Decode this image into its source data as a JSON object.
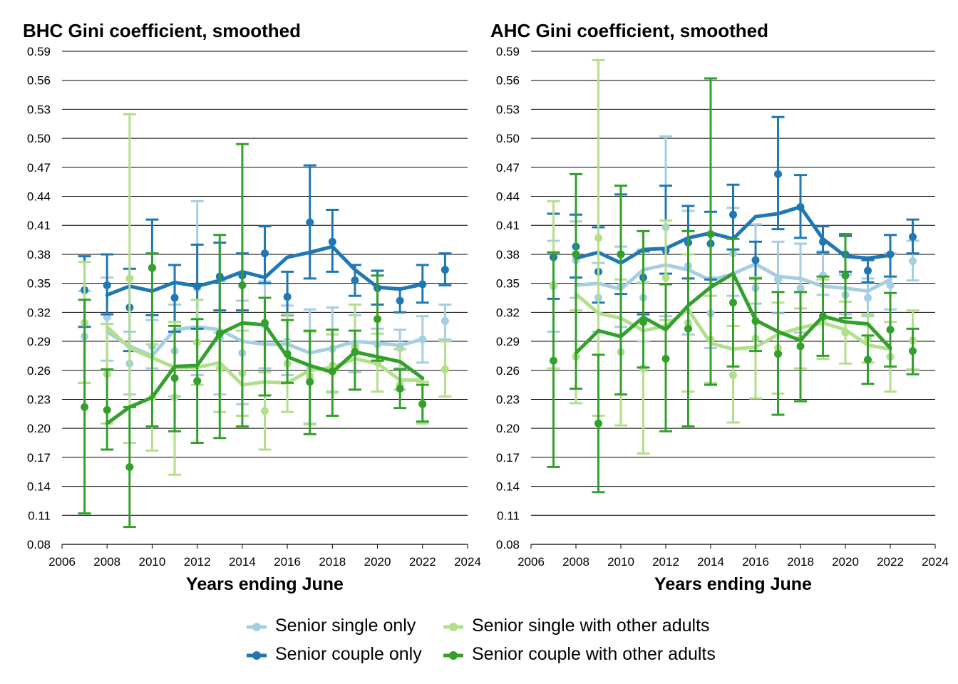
{
  "chart_data": [
    {
      "type": "line",
      "title": "BHC Gini coefficient, smoothed",
      "xlabel": "Years ending June",
      "ylabel": "",
      "xlim": [
        2006,
        2024
      ],
      "ylim": [
        0.08,
        0.59
      ],
      "xticks": [
        "2006",
        "2008",
        "2010",
        "2012",
        "2014",
        "2016",
        "2018",
        "2020",
        "2022",
        "2024"
      ],
      "yticks": [
        "0.59",
        "0.56",
        "0.53",
        "0.50",
        "0.47",
        "0.44",
        "0.41",
        "0.38",
        "0.35",
        "0.32",
        "0.29",
        "0.26",
        "0.23",
        "0.20",
        "0.17",
        "0.14",
        "0.11",
        "0.08"
      ],
      "grid": "horizontal",
      "series": [
        {
          "name": "Senior single only",
          "color": "#a6cee3",
          "x": [
            2007,
            2008,
            2009,
            2010,
            2011,
            2012,
            2013,
            2014,
            2015,
            2016,
            2017,
            2018,
            2019,
            2020,
            2021,
            2022,
            2023
          ],
          "points": [
            0.295,
            0.315,
            0.267,
            0.285,
            0.28,
            0.345,
            0.293,
            0.278,
            0.307,
            0.29,
            0.263,
            0.282,
            0.286,
            0.287,
            0.283,
            0.292,
            0.311
          ],
          "lower": [
            0.247,
            0.27,
            0.235,
            0.262,
            0.233,
            0.255,
            0.235,
            0.225,
            0.262,
            0.255,
            0.205,
            0.238,
            0.258,
            0.27,
            0.262,
            0.268,
            0.292
          ],
          "upper": [
            0.342,
            0.356,
            0.3,
            0.312,
            0.328,
            0.435,
            0.352,
            0.332,
            0.352,
            0.327,
            0.323,
            0.325,
            0.317,
            0.303,
            0.302,
            0.316,
            0.328
          ],
          "smoothed": [
            null,
            0.3,
            0.285,
            0.275,
            0.302,
            0.305,
            0.302,
            0.29,
            0.287,
            0.287,
            0.278,
            0.283,
            0.29,
            0.288,
            0.286,
            0.292,
            null
          ]
        },
        {
          "name": "Senior couple only",
          "color": "#1f78b4",
          "x": [
            2007,
            2008,
            2009,
            2010,
            2011,
            2012,
            2013,
            2014,
            2015,
            2016,
            2017,
            2018,
            2019,
            2020,
            2021,
            2022,
            2023
          ],
          "points": [
            0.343,
            0.348,
            0.325,
            0.366,
            0.335,
            0.347,
            0.357,
            0.358,
            0.381,
            0.336,
            0.413,
            0.393,
            0.353,
            0.345,
            0.332,
            0.349,
            0.364
          ],
          "lower": [
            0.305,
            0.318,
            0.28,
            0.317,
            0.3,
            0.303,
            0.322,
            0.322,
            0.35,
            0.317,
            0.355,
            0.362,
            0.337,
            0.328,
            0.32,
            0.33,
            0.348
          ],
          "upper": [
            0.378,
            0.38,
            0.365,
            0.416,
            0.369,
            0.39,
            0.392,
            0.381,
            0.409,
            0.362,
            0.472,
            0.426,
            0.369,
            0.363,
            0.345,
            0.369,
            0.381
          ],
          "smoothed": [
            null,
            0.338,
            0.347,
            0.342,
            0.351,
            0.347,
            0.353,
            0.362,
            0.356,
            0.377,
            0.382,
            0.388,
            0.364,
            0.346,
            0.344,
            0.349,
            null
          ]
        },
        {
          "name": "Senior single with other adults",
          "color": "#b2df8a",
          "x": [
            2007,
            2008,
            2009,
            2010,
            2011,
            2012,
            2013,
            2014,
            2015,
            2016,
            2017,
            2018,
            2019,
            2020,
            2021,
            2022,
            2023
          ],
          "points": [
            0.309,
            0.256,
            0.355,
            0.232,
            0.232,
            0.289,
            0.262,
            0.257,
            0.218,
            0.267,
            0.254,
            0.265,
            0.284,
            0.268,
            0.245,
            0.226,
            0.261
          ],
          "lower": [
            0.247,
            0.205,
            0.185,
            0.177,
            0.152,
            0.245,
            0.217,
            0.213,
            0.178,
            0.217,
            0.204,
            0.237,
            0.24,
            0.238,
            0.24,
            0.205,
            0.233
          ],
          "upper": [
            0.372,
            0.308,
            0.525,
            0.287,
            0.31,
            0.333,
            0.299,
            0.301,
            0.258,
            0.318,
            0.3,
            0.297,
            0.328,
            0.298,
            0.282,
            0.248,
            0.29
          ],
          "smoothed": [
            null,
            0.305,
            0.283,
            0.273,
            0.263,
            0.263,
            0.268,
            0.245,
            0.248,
            0.247,
            0.26,
            0.263,
            0.272,
            0.267,
            0.25,
            0.25,
            null
          ]
        },
        {
          "name": "Senior couple with other adults",
          "color": "#33a02c",
          "x": [
            2007,
            2008,
            2009,
            2010,
            2011,
            2012,
            2013,
            2014,
            2015,
            2016,
            2017,
            2018,
            2019,
            2020,
            2021,
            2022,
            2023
          ],
          "points": [
            0.222,
            0.219,
            0.16,
            0.366,
            0.252,
            0.249,
            0.298,
            0.348,
            0.309,
            0.277,
            0.248,
            0.259,
            0.279,
            0.313,
            0.241,
            0.225,
            null
          ],
          "lower": [
            0.112,
            0.178,
            0.098,
            0.202,
            0.197,
            0.185,
            0.19,
            0.202,
            0.234,
            0.247,
            0.194,
            0.213,
            0.24,
            0.27,
            0.221,
            0.207,
            null
          ],
          "upper": [
            0.333,
            0.261,
            0.222,
            0.381,
            0.306,
            0.313,
            0.4,
            0.494,
            0.335,
            0.312,
            0.301,
            0.302,
            0.301,
            0.358,
            0.261,
            0.245,
            null
          ],
          "smoothed": [
            null,
            0.205,
            0.222,
            0.232,
            0.264,
            0.265,
            0.298,
            0.309,
            0.307,
            0.274,
            0.265,
            0.258,
            0.279,
            0.274,
            0.269,
            0.252,
            null
          ]
        }
      ]
    },
    {
      "type": "line",
      "title": "AHC Gini coefficient, smoothed",
      "xlabel": "Years ending June",
      "ylabel": "",
      "xlim": [
        2006,
        2024
      ],
      "ylim": [
        0.08,
        0.59
      ],
      "xticks": [
        "2006",
        "2008",
        "2010",
        "2012",
        "2014",
        "2016",
        "2018",
        "2020",
        "2022",
        "2024"
      ],
      "yticks": [
        "0.59",
        "0.56",
        "0.53",
        "0.50",
        "0.47",
        "0.44",
        "0.41",
        "0.38",
        "0.35",
        "0.32",
        "0.29",
        "0.26",
        "0.23",
        "0.20",
        "0.17",
        "0.14",
        "0.11",
        "0.08"
      ],
      "grid": "horizontal",
      "series": [
        {
          "name": "Senior single only",
          "color": "#a6cee3",
          "x": [
            2007,
            2008,
            2009,
            2010,
            2011,
            2012,
            2013,
            2014,
            2015,
            2016,
            2017,
            2018,
            2019,
            2020,
            2021,
            2022,
            2023
          ],
          "points": [
            0.347,
            0.374,
            0.335,
            0.347,
            0.335,
            0.408,
            0.368,
            0.319,
            0.381,
            0.345,
            0.354,
            0.345,
            0.358,
            0.338,
            0.335,
            0.348,
            0.373
          ],
          "lower": [
            0.3,
            0.335,
            0.3,
            0.305,
            0.29,
            0.316,
            0.297,
            0.283,
            0.337,
            0.329,
            0.319,
            0.299,
            0.338,
            0.318,
            0.316,
            0.323,
            0.353
          ],
          "upper": [
            0.394,
            0.414,
            0.371,
            0.388,
            0.385,
            0.502,
            0.425,
            0.356,
            0.428,
            0.411,
            0.393,
            0.391,
            0.383,
            0.359,
            0.355,
            0.381,
            0.394
          ],
          "smoothed": [
            null,
            0.348,
            0.35,
            0.344,
            0.364,
            0.369,
            0.364,
            0.353,
            0.36,
            0.37,
            0.357,
            0.355,
            0.347,
            0.345,
            0.342,
            0.354,
            null
          ]
        },
        {
          "name": "Senior couple only",
          "color": "#1f78b4",
          "x": [
            2007,
            2008,
            2009,
            2010,
            2011,
            2012,
            2013,
            2014,
            2015,
            2016,
            2017,
            2018,
            2019,
            2020,
            2021,
            2022,
            2023
          ],
          "points": [
            0.377,
            0.388,
            0.362,
            0.38,
            0.356,
            0.384,
            0.392,
            0.391,
            0.421,
            0.374,
            0.463,
            0.429,
            0.393,
            0.38,
            0.363,
            0.38,
            0.398
          ],
          "lower": [
            0.334,
            0.356,
            0.33,
            0.339,
            0.318,
            0.36,
            0.355,
            0.354,
            0.385,
            0.356,
            0.406,
            0.397,
            0.382,
            0.362,
            0.351,
            0.357,
            0.381
          ],
          "upper": [
            0.422,
            0.421,
            0.408,
            0.442,
            0.383,
            0.451,
            0.43,
            0.424,
            0.452,
            0.393,
            0.522,
            0.462,
            0.409,
            0.399,
            0.374,
            0.4,
            0.416
          ],
          "smoothed": [
            null,
            0.376,
            0.382,
            0.371,
            0.385,
            0.386,
            0.397,
            0.402,
            0.396,
            0.419,
            0.422,
            0.429,
            0.396,
            0.378,
            0.376,
            0.379,
            null
          ]
        },
        {
          "name": "Senior single with other adults",
          "color": "#b2df8a",
          "x": [
            2007,
            2008,
            2009,
            2010,
            2011,
            2012,
            2013,
            2014,
            2015,
            2016,
            2017,
            2018,
            2019,
            2020,
            2021,
            2022,
            2023
          ],
          "points": [
            0.348,
            0.274,
            0.397,
            0.279,
            0.262,
            0.356,
            0.309,
            0.292,
            0.255,
            0.293,
            0.283,
            0.293,
            0.313,
            0.299,
            0.293,
            0.274,
            0.291
          ],
          "lower": [
            0.262,
            0.226,
            0.213,
            0.203,
            0.174,
            0.312,
            0.238,
            0.247,
            0.206,
            0.231,
            0.236,
            0.262,
            0.272,
            0.267,
            0.268,
            0.238,
            0.261
          ],
          "upper": [
            0.435,
            0.322,
            0.581,
            0.354,
            0.351,
            0.415,
            0.38,
            0.337,
            0.306,
            0.356,
            0.33,
            0.324,
            0.354,
            0.331,
            0.318,
            0.31,
            0.322
          ],
          "smoothed": [
            null,
            0.339,
            0.319,
            0.314,
            0.301,
            0.306,
            0.323,
            0.288,
            0.282,
            0.284,
            0.297,
            0.304,
            0.309,
            0.302,
            0.286,
            0.282,
            null
          ]
        },
        {
          "name": "Senior couple with other adults",
          "color": "#33a02c",
          "x": [
            2007,
            2008,
            2009,
            2010,
            2011,
            2012,
            2013,
            2014,
            2015,
            2016,
            2017,
            2018,
            2019,
            2020,
            2021,
            2022,
            2023
          ],
          "points": [
            0.27,
            0.38,
            0.205,
            0.38,
            0.31,
            0.272,
            0.303,
            0.401,
            0.33,
            0.311,
            0.277,
            0.285,
            0.316,
            0.358,
            0.271,
            0.302,
            0.28
          ],
          "lower": [
            0.16,
            0.241,
            0.134,
            0.235,
            0.263,
            0.197,
            0.202,
            0.245,
            0.264,
            0.28,
            0.214,
            0.228,
            0.275,
            0.314,
            0.246,
            0.264,
            0.256
          ],
          "upper": [
            0.382,
            0.463,
            0.276,
            0.451,
            0.404,
            0.349,
            0.404,
            0.562,
            0.396,
            0.355,
            0.341,
            0.341,
            0.357,
            0.401,
            0.296,
            0.34,
            0.303
          ],
          "smoothed": [
            null,
            0.278,
            0.301,
            0.295,
            0.315,
            0.302,
            0.327,
            0.346,
            0.36,
            0.312,
            0.3,
            0.291,
            0.316,
            0.31,
            0.308,
            0.283,
            null
          ]
        }
      ]
    }
  ],
  "legend": {
    "items": [
      {
        "label": "Senior single only",
        "color": "#a6cee3"
      },
      {
        "label": "Senior single with other adults",
        "color": "#b2df8a"
      },
      {
        "label": "Senior couple only",
        "color": "#1f78b4"
      },
      {
        "label": "Senior couple with other adults",
        "color": "#33a02c"
      }
    ]
  }
}
